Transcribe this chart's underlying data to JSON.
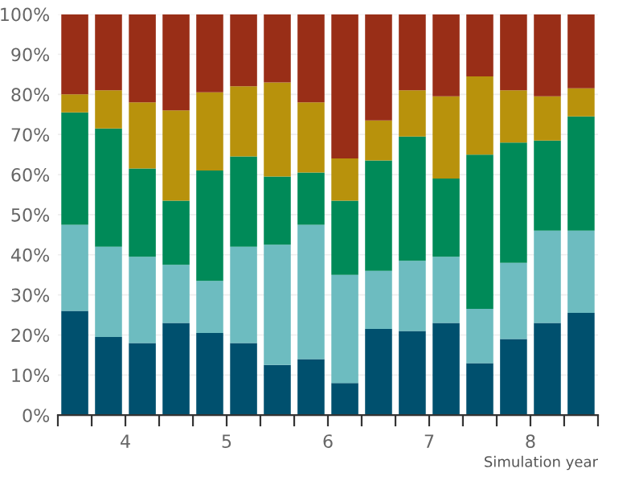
{
  "chart_data": {
    "type": "bar",
    "stacked": true,
    "xlabel": "Simulation year",
    "x": [
      3.5,
      3.833,
      4.167,
      4.5,
      4.833,
      5.167,
      5.5,
      5.833,
      6.167,
      6.5,
      6.833,
      7.167,
      7.5,
      7.833,
      8.167,
      8.5
    ],
    "xlim": [
      3.333,
      8.667
    ],
    "xticks": [
      {
        "value": 3.333,
        "label": null
      },
      {
        "value": 3.667,
        "label": null
      },
      4,
      {
        "value": 4.333,
        "label": null
      },
      {
        "value": 4.667,
        "label": null
      },
      5,
      {
        "value": 5.333,
        "label": null
      },
      {
        "value": 5.667,
        "label": null
      },
      6,
      {
        "value": 6.333,
        "label": null
      },
      {
        "value": 6.667,
        "label": null
      },
      7,
      {
        "value": 7.333,
        "label": null
      },
      {
        "value": 7.667,
        "label": null
      },
      8,
      {
        "value": 8.333,
        "label": null
      },
      {
        "value": 8.667,
        "label": null
      }
    ],
    "ylim": [
      0,
      100
    ],
    "yticks": [
      {
        "value": 0,
        "label": "0%"
      },
      {
        "value": 10,
        "label": "10%"
      },
      {
        "value": 20,
        "label": "20%"
      },
      {
        "value": 30,
        "label": "30%"
      },
      {
        "value": 40,
        "label": "40%"
      },
      {
        "value": 50,
        "label": "50%"
      },
      {
        "value": 60,
        "label": "60%"
      },
      {
        "value": 70,
        "label": "70%"
      },
      {
        "value": 80,
        "label": "80%"
      },
      {
        "value": 90,
        "label": "90%"
      },
      {
        "value": 100,
        "label": "100%"
      }
    ],
    "grid": "y",
    "series": [
      {
        "color": "#00506e",
        "values": [
          26,
          19.5,
          18,
          23,
          20.5,
          18,
          12.5,
          14,
          8,
          21.5,
          21,
          23,
          13,
          19,
          23,
          25.5
        ]
      },
      {
        "color": "#6dbcc0",
        "values": [
          21.5,
          22.5,
          21.5,
          14.5,
          13,
          24,
          30,
          33.5,
          27,
          14.5,
          17.5,
          16.5,
          13.5,
          19,
          23,
          20.5
        ]
      },
      {
        "color": "#008a58",
        "values": [
          28,
          29.5,
          22,
          16,
          27.5,
          22.5,
          17,
          13,
          18.5,
          27.5,
          31,
          19.5,
          38.5,
          30,
          22.5,
          28.5
        ]
      },
      {
        "color": "#b8920c",
        "values": [
          4.5,
          9.5,
          16.5,
          22.5,
          19.5,
          17.5,
          23.5,
          17.5,
          10.5,
          10,
          11.5,
          20.5,
          19.5,
          13,
          11,
          7
        ]
      },
      {
        "color": "#992e17",
        "values": [
          20,
          19,
          22,
          24,
          19.5,
          18,
          17,
          22,
          36,
          26.5,
          19,
          20.5,
          15.5,
          19,
          20.5,
          18.5
        ]
      }
    ]
  }
}
